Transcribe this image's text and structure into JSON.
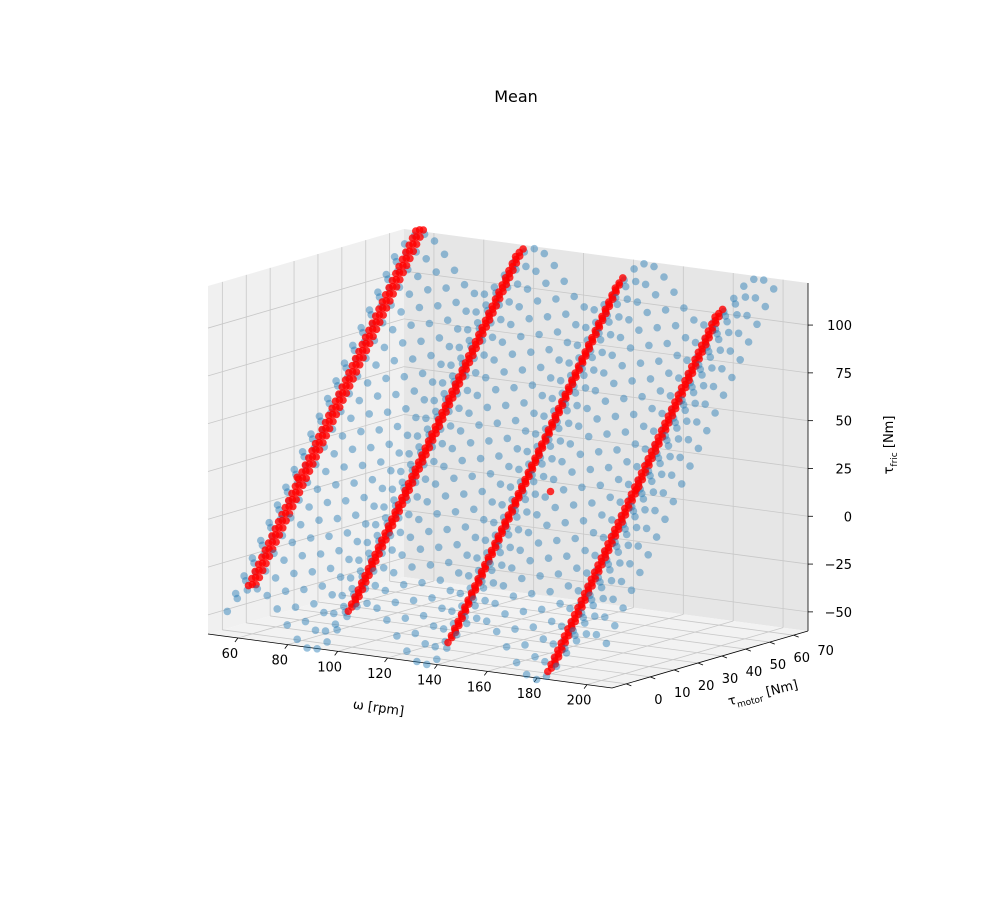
{
  "chart_data": {
    "type": "scatter3d",
    "title": "Mean",
    "xlabel": "ω [rpm]",
    "ylabel_main": "τ",
    "ylabel_sub": "motor",
    "ylabel_unit": " [Nm]",
    "zlabel_main": "τ",
    "zlabel_sub": "fric",
    "zlabel_unit": " [Nm]",
    "x_ticks": [
      "60",
      "80",
      "100",
      "120",
      "140",
      "160",
      "180",
      "200"
    ],
    "y_ticks": [
      "0",
      "10",
      "20",
      "30",
      "40",
      "50",
      "60",
      "70"
    ],
    "z_ticks": [
      "−50",
      "−25",
      "0",
      "25",
      "50",
      "75",
      "100"
    ],
    "xlim": [
      48,
      210
    ],
    "ylim": [
      -6,
      76
    ],
    "zlim": [
      -60,
      122
    ],
    "grid": true,
    "series": [
      {
        "color": "#1f77b4",
        "opacity": 0.45,
        "grid_x": [
          50,
          202
        ],
        "grid_y": [
          0,
          70
        ],
        "z_base": [
          -50,
          110
        ],
        "z_wave_amplitude": 14,
        "z_wave_period_rpm": 45
      },
      {
        "color": "#ff0000",
        "opacity": 0.8,
        "bands_rpm": [
          60,
          100,
          140,
          180
        ],
        "bands_y": [
          0,
          70
        ],
        "outliers": [
          {
            "x": 78,
            "y": 0,
            "z": 25
          },
          {
            "x": 170,
            "y": 10,
            "z": 30
          },
          {
            "x": 195,
            "y": 20,
            "z": 32
          }
        ]
      }
    ]
  }
}
